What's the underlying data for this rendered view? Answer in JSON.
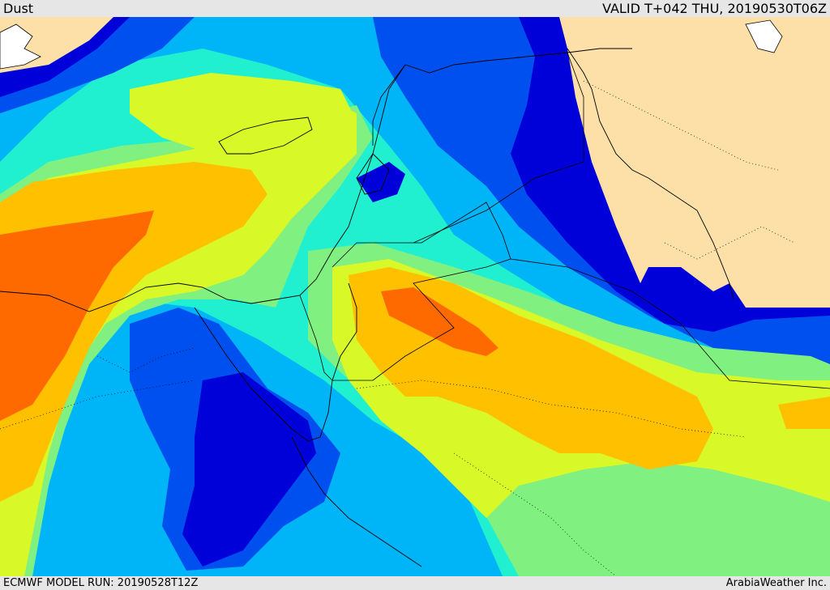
{
  "header": {
    "title": "Dust",
    "valid": "VALID T+042 THU, 20190530T06Z"
  },
  "footer": {
    "model_run": "ECMWF MODEL RUN: 20190528T12Z",
    "credit": "ArabiaWeather Inc."
  },
  "map": {
    "field": "dust",
    "colors": {
      "land_no_data": "#fde0a8",
      "level_1_blue": "#0000d8",
      "level_2_blue": "#0050f0",
      "level_3_sky": "#00b4f8",
      "level_4_cyan": "#20f0d0",
      "level_5_green": "#80f080",
      "level_6_yellow": "#d8f828",
      "level_7_amber": "#ffc000",
      "level_8_orange": "#ff6a00",
      "border_line": "#000000"
    }
  }
}
